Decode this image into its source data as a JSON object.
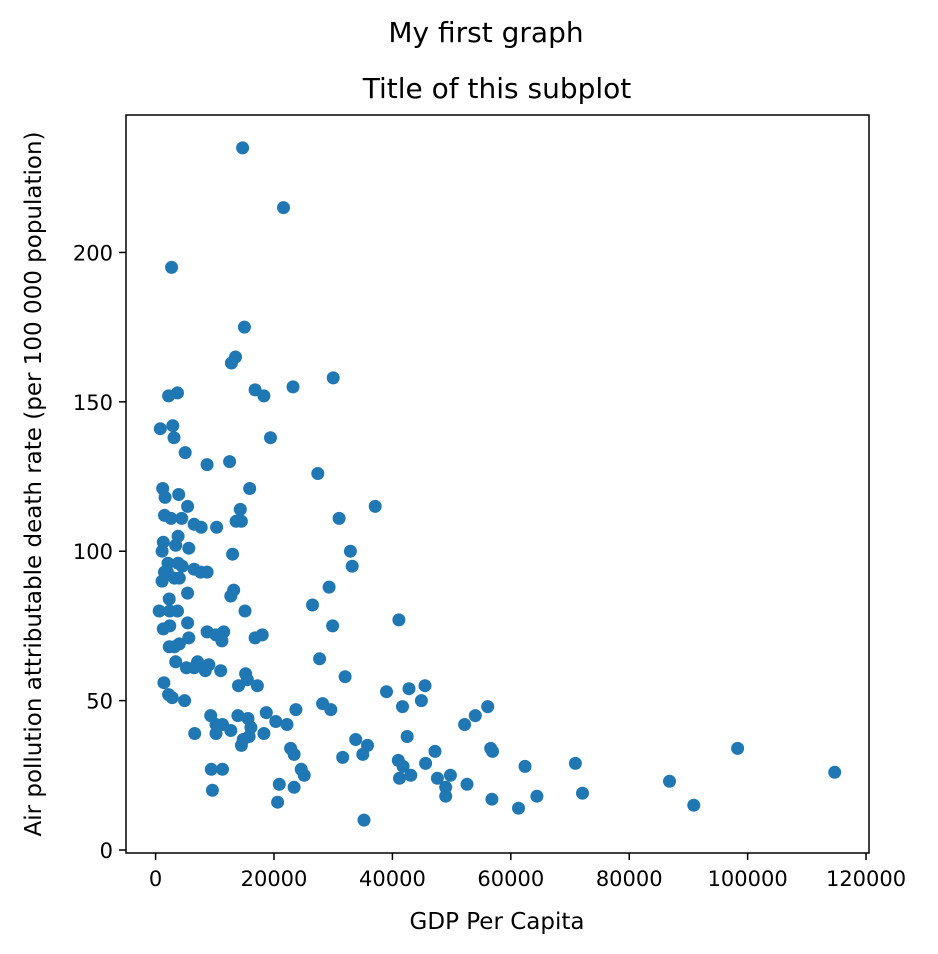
{
  "chart_data": {
    "type": "scatter",
    "suptitle": "My first graph",
    "title": "Title of this subplot",
    "xlabel": "GDP Per Capita",
    "ylabel": "Air pollution attributable death rate (per 100 000 population)",
    "xlim": [
      -5000,
      120500
    ],
    "ylim": [
      -1,
      246
    ],
    "xticks": [
      0,
      20000,
      40000,
      60000,
      80000,
      100000,
      120000
    ],
    "xtick_labels": [
      "0",
      "20000",
      "40000",
      "60000",
      "80000",
      "100000",
      "120000"
    ],
    "yticks": [
      0,
      50,
      100,
      150,
      200
    ],
    "ytick_labels": [
      "0",
      "50",
      "100",
      "150",
      "200"
    ],
    "grid": false,
    "marker_color": "#1f77b4",
    "points": [
      [
        14700,
        235
      ],
      [
        21600,
        215
      ],
      [
        2700,
        195
      ],
      [
        15000,
        175
      ],
      [
        13500,
        165
      ],
      [
        12800,
        163
      ],
      [
        30000,
        158
      ],
      [
        23200,
        155
      ],
      [
        16800,
        154
      ],
      [
        18300,
        152
      ],
      [
        3700,
        153
      ],
      [
        2200,
        152
      ],
      [
        2900,
        142
      ],
      [
        800,
        141
      ],
      [
        3100,
        138
      ],
      [
        19400,
        138
      ],
      [
        5000,
        133
      ],
      [
        12500,
        130
      ],
      [
        8700,
        129
      ],
      [
        27400,
        126
      ],
      [
        1200,
        121
      ],
      [
        15900,
        121
      ],
      [
        3900,
        119
      ],
      [
        1600,
        118
      ],
      [
        37100,
        115
      ],
      [
        5400,
        115
      ],
      [
        14300,
        114
      ],
      [
        1500,
        112
      ],
      [
        4400,
        111
      ],
      [
        2600,
        111
      ],
      [
        13600,
        110
      ],
      [
        14500,
        110
      ],
      [
        31000,
        111
      ],
      [
        7700,
        108
      ],
      [
        6500,
        109
      ],
      [
        10300,
        108
      ],
      [
        3800,
        105
      ],
      [
        1300,
        103
      ],
      [
        3400,
        102
      ],
      [
        5600,
        101
      ],
      [
        1100,
        100
      ],
      [
        32900,
        100
      ],
      [
        13000,
        99
      ],
      [
        2100,
        96
      ],
      [
        3800,
        96
      ],
      [
        4500,
        95
      ],
      [
        33200,
        95
      ],
      [
        6500,
        94
      ],
      [
        7600,
        93
      ],
      [
        8700,
        93
      ],
      [
        2000,
        93
      ],
      [
        1500,
        93
      ],
      [
        3200,
        91
      ],
      [
        1100,
        90
      ],
      [
        4000,
        91
      ],
      [
        29300,
        88
      ],
      [
        13200,
        87
      ],
      [
        5400,
        86
      ],
      [
        12700,
        85
      ],
      [
        2300,
        84
      ],
      [
        26500,
        82
      ],
      [
        600,
        80
      ],
      [
        2400,
        80
      ],
      [
        3700,
        80
      ],
      [
        15100,
        80
      ],
      [
        41100,
        77
      ],
      [
        5400,
        76
      ],
      [
        1300,
        74
      ],
      [
        2400,
        75
      ],
      [
        29900,
        75
      ],
      [
        8700,
        73
      ],
      [
        11500,
        73
      ],
      [
        10200,
        72
      ],
      [
        18000,
        72
      ],
      [
        5600,
        71
      ],
      [
        16800,
        71
      ],
      [
        11200,
        70
      ],
      [
        4000,
        69
      ],
      [
        3200,
        68
      ],
      [
        2300,
        68
      ],
      [
        27700,
        64
      ],
      [
        3400,
        63
      ],
      [
        7100,
        63
      ],
      [
        6500,
        61
      ],
      [
        5200,
        61
      ],
      [
        9000,
        62
      ],
      [
        8400,
        60
      ],
      [
        11000,
        60
      ],
      [
        15200,
        59
      ],
      [
        32000,
        58
      ],
      [
        15500,
        57
      ],
      [
        1400,
        56
      ],
      [
        45500,
        55
      ],
      [
        14000,
        55
      ],
      [
        17200,
        55
      ],
      [
        42800,
        54
      ],
      [
        39000,
        53
      ],
      [
        2200,
        52
      ],
      [
        2800,
        51
      ],
      [
        44900,
        50
      ],
      [
        4900,
        50
      ],
      [
        28200,
        49
      ],
      [
        41700,
        48
      ],
      [
        56100,
        48
      ],
      [
        23700,
        47
      ],
      [
        29600,
        47
      ],
      [
        18700,
        46
      ],
      [
        13900,
        45
      ],
      [
        9300,
        45
      ],
      [
        15600,
        44
      ],
      [
        54000,
        45
      ],
      [
        20300,
        43
      ],
      [
        11300,
        42
      ],
      [
        22200,
        42
      ],
      [
        52200,
        42
      ],
      [
        16100,
        41
      ],
      [
        10200,
        42
      ],
      [
        12700,
        40
      ],
      [
        6600,
        39
      ],
      [
        10200,
        39
      ],
      [
        18300,
        39
      ],
      [
        15800,
        38
      ],
      [
        42500,
        38
      ],
      [
        14800,
        37
      ],
      [
        33800,
        37
      ],
      [
        14500,
        35
      ],
      [
        98300,
        34
      ],
      [
        22800,
        34
      ],
      [
        35800,
        35
      ],
      [
        56600,
        34
      ],
      [
        47200,
        33
      ],
      [
        56900,
        33
      ],
      [
        23400,
        32
      ],
      [
        35000,
        32
      ],
      [
        31600,
        31
      ],
      [
        41000,
        30
      ],
      [
        45600,
        29
      ],
      [
        70900,
        29
      ],
      [
        62400,
        28
      ],
      [
        41800,
        28
      ],
      [
        9400,
        27
      ],
      [
        24600,
        27
      ],
      [
        11300,
        27
      ],
      [
        25100,
        25
      ],
      [
        114700,
        26
      ],
      [
        43100,
        25
      ],
      [
        49800,
        25
      ],
      [
        41200,
        24
      ],
      [
        47600,
        24
      ],
      [
        20900,
        22
      ],
      [
        52600,
        22
      ],
      [
        86800,
        23
      ],
      [
        49000,
        21
      ],
      [
        9600,
        20
      ],
      [
        23400,
        21
      ],
      [
        49000,
        18
      ],
      [
        72100,
        19
      ],
      [
        64400,
        18
      ],
      [
        56800,
        17
      ],
      [
        20600,
        16
      ],
      [
        90900,
        15
      ],
      [
        61300,
        14
      ],
      [
        35200,
        10
      ]
    ]
  }
}
